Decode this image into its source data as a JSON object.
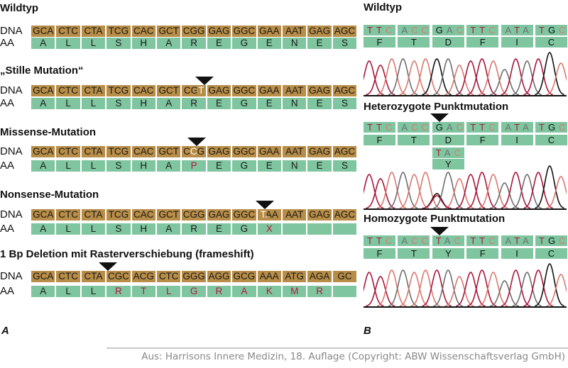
{
  "left": {
    "dna_label": "DNA",
    "aa_label": "AA",
    "panel_label": "A",
    "sections": [
      {
        "title": "Wildtyp",
        "dna": [
          "GCA",
          "CTC",
          "CTA",
          "TCG",
          "CAC",
          "GCT",
          "CGG",
          "GAG",
          "GGC",
          "GAA",
          "AAT",
          "GAG",
          "AGC"
        ],
        "aa": [
          "A",
          "L",
          "L",
          "S",
          "H",
          "A",
          "R",
          "E",
          "G",
          "E",
          "N",
          "E",
          "S"
        ],
        "aa_red": [],
        "mutation": null
      },
      {
        "title": "„Stille Mutation“",
        "dna": [
          "GCA",
          "CTC",
          "CTA",
          "TCG",
          "CAC",
          "GCT",
          "CGT",
          "GAG",
          "GGC",
          "GAA",
          "AAT",
          "GAG",
          "AGC"
        ],
        "aa": [
          "A",
          "L",
          "L",
          "S",
          "H",
          "A",
          "R",
          "E",
          "G",
          "E",
          "N",
          "E",
          "S"
        ],
        "aa_red": [],
        "mutation": {
          "codon": 6,
          "base": 2
        }
      },
      {
        "title": "Missense-Mutation",
        "dna": [
          "GCA",
          "CTC",
          "CTA",
          "TCG",
          "CAC",
          "GCT",
          "CCG",
          "GAG",
          "GGC",
          "GAA",
          "AAT",
          "GAG",
          "AGC"
        ],
        "aa": [
          "A",
          "L",
          "L",
          "S",
          "H",
          "A",
          "P",
          "E",
          "G",
          "E",
          "N",
          "E",
          "S"
        ],
        "aa_red": [
          6
        ],
        "mutation": {
          "codon": 6,
          "base": 1
        }
      },
      {
        "title": "Nonsense-Mutation",
        "dna": [
          "GCA",
          "CTC",
          "CTA",
          "TCG",
          "CAC",
          "GCT",
          "CGG",
          "GAG",
          "GGC",
          "TAA",
          "AAT",
          "GAG",
          "AGC"
        ],
        "aa": [
          "A",
          "L",
          "L",
          "S",
          "H",
          "A",
          "R",
          "E",
          "G",
          "X",
          "",
          "",
          ""
        ],
        "aa_red": [
          9
        ],
        "mutation": {
          "codon": 9,
          "base": 0
        }
      },
      {
        "title": "1 Bp Deletion mit Rasterverschiebung (frameshift)",
        "dna": [
          "GCA",
          "CTC",
          "CTA",
          "CGC",
          "ACG",
          "CTC",
          "GGG",
          "AGG",
          "GCG",
          "AAA",
          "ATG",
          "AGA",
          "GC"
        ],
        "aa": [
          "A",
          "L",
          "L",
          "R",
          "T",
          "L",
          "G",
          "R",
          "A",
          "K",
          "M",
          "R",
          ""
        ],
        "aa_red": [
          3,
          4,
          5,
          6,
          7,
          8,
          9,
          10,
          11
        ],
        "mutation": {
          "codon": 3,
          "base": 0,
          "deletion": true
        }
      }
    ]
  },
  "right": {
    "panel_label": "B",
    "sections": [
      {
        "title": "Wildtyp",
        "codons": [
          "TTC",
          "ACC",
          "GAC",
          "TTC",
          "ATA",
          "TGC"
        ],
        "aa": [
          "F",
          "T",
          "D",
          "F",
          "I",
          "C"
        ],
        "alt_codon": null,
        "alt_aa": null,
        "marker": null,
        "trace": "TTCACCGACTTCATATGC",
        "secondary": null
      },
      {
        "title": "Heterozygote Punktmutation",
        "codons": [
          "TTC",
          "ACC",
          "GAC",
          "TTC",
          "ATA",
          "TGC"
        ],
        "aa": [
          "F",
          "T",
          "D",
          "F",
          "I",
          "C"
        ],
        "alt_codon": "TAC",
        "alt_aa": "Y",
        "marker": 2,
        "trace": "TTCACCGACTTCATATGC",
        "secondary": {
          "position": 6,
          "base": "T"
        }
      },
      {
        "title": "Homozygote Punktmutation",
        "codons": [
          "TTC",
          "ACC",
          "TAC",
          "TTC",
          "ATA",
          "TGC"
        ],
        "aa": [
          "F",
          "T",
          "Y",
          "F",
          "I",
          "C"
        ],
        "alt_codon": null,
        "alt_aa": null,
        "marker": 2,
        "trace": "TTCACCTACTTCATATGC",
        "secondary": null
      }
    ]
  },
  "base_colors": {
    "T": "#a8163a",
    "C": "#d9786e",
    "A": "#6e6e6e",
    "G": "#111111"
  },
  "footer": "Aus: Harrisons Innere Medizin, 18. Auflage (Copyright: ABW Wissenschaftsverlag GmbH)"
}
